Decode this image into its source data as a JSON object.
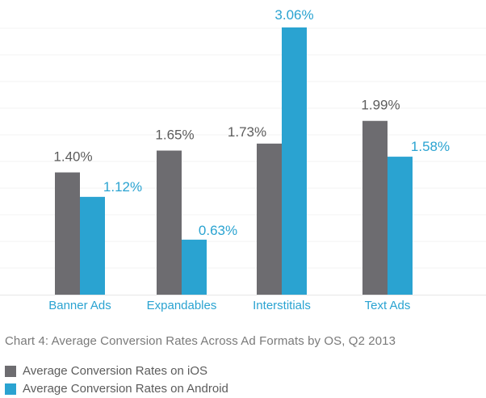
{
  "chart_data": {
    "type": "bar",
    "title": "Chart 4: Average Conversion Rates Across Ad Formats by OS, Q2 2013",
    "categories": [
      "Banner Ads",
      "Expandables",
      "Interstitials",
      "Text Ads"
    ],
    "series": [
      {
        "name": "Average Conversion Rates on iOS",
        "color": "#6d6c70",
        "label_color": "#5c5c5c",
        "values": [
          1.4,
          1.65,
          1.73,
          1.99
        ],
        "labels": [
          "1.40%",
          "1.65%",
          "1.73%",
          "1.99%"
        ]
      },
      {
        "name": "Average Conversion Rates on Android",
        "color": "#2aa3d1",
        "label_color": "#2aa3d1",
        "values": [
          1.12,
          0.63,
          3.06,
          1.58
        ],
        "labels": [
          "1.12%",
          "0.63%",
          "3.06%",
          "1.58%"
        ]
      }
    ],
    "xlabel": "",
    "ylabel": "",
    "ylim": [
      0,
      3.06
    ],
    "grid": true,
    "legend_position": "bottom-left"
  }
}
